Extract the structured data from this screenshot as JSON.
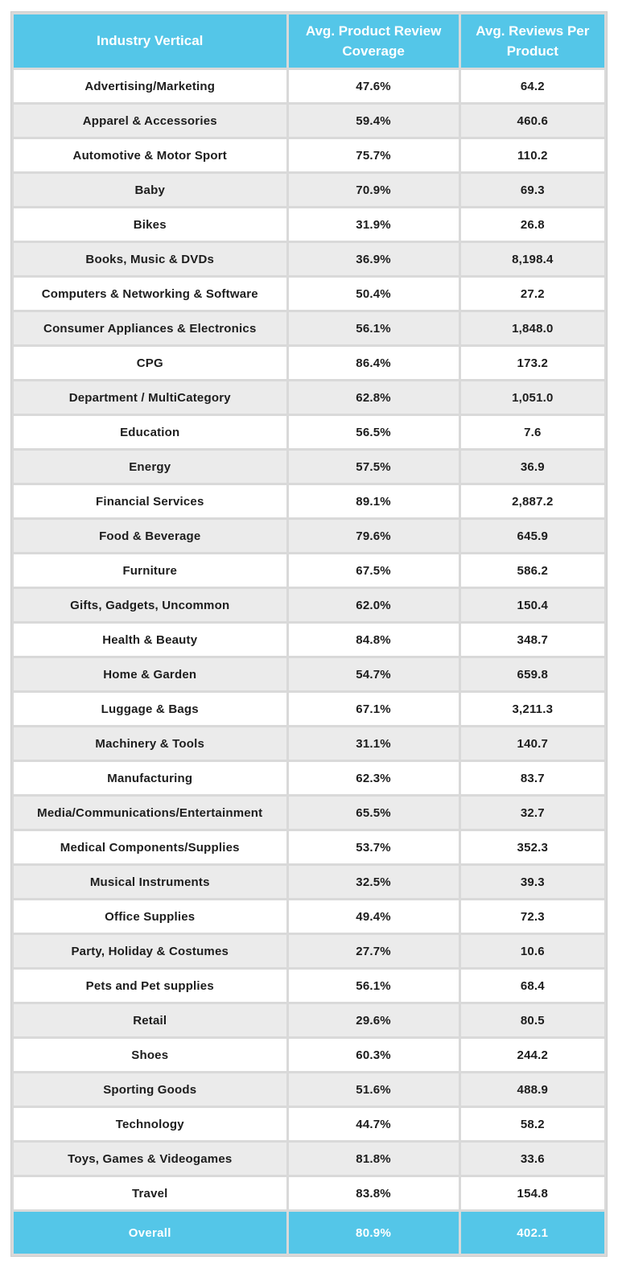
{
  "colors": {
    "header_bg": "#54C6E8",
    "footer_bg": "#54C6E8",
    "row_bg": "#FFFFFF",
    "row_alt_bg": "#EBEBEB",
    "divider": "#D9D9D9",
    "header_text": "#FFFFFF",
    "body_text": "#1D1D1D"
  },
  "chart_data": {
    "type": "table",
    "columns": [
      "Industry Vertical",
      "Avg. Product Review Coverage",
      "Avg. Reviews Per Product"
    ],
    "rows": [
      {
        "industry": "Advertising/Marketing",
        "coverage": "47.6%",
        "reviews": "64.2"
      },
      {
        "industry": "Apparel & Accessories",
        "coverage": "59.4%",
        "reviews": "460.6"
      },
      {
        "industry": "Automotive & Motor Sport",
        "coverage": "75.7%",
        "reviews": "110.2"
      },
      {
        "industry": "Baby",
        "coverage": "70.9%",
        "reviews": "69.3"
      },
      {
        "industry": "Bikes",
        "coverage": "31.9%",
        "reviews": "26.8"
      },
      {
        "industry": "Books, Music & DVDs",
        "coverage": "36.9%",
        "reviews": "8,198.4"
      },
      {
        "industry": "Computers & Networking & Software",
        "coverage": "50.4%",
        "reviews": "27.2"
      },
      {
        "industry": "Consumer Appliances & Electronics",
        "coverage": "56.1%",
        "reviews": "1,848.0"
      },
      {
        "industry": "CPG",
        "coverage": "86.4%",
        "reviews": "173.2"
      },
      {
        "industry": "Department / MultiCategory",
        "coverage": "62.8%",
        "reviews": "1,051.0"
      },
      {
        "industry": "Education",
        "coverage": "56.5%",
        "reviews": "7.6"
      },
      {
        "industry": "Energy",
        "coverage": "57.5%",
        "reviews": "36.9"
      },
      {
        "industry": "Financial Services",
        "coverage": "89.1%",
        "reviews": "2,887.2"
      },
      {
        "industry": "Food & Beverage",
        "coverage": "79.6%",
        "reviews": "645.9"
      },
      {
        "industry": "Furniture",
        "coverage": "67.5%",
        "reviews": "586.2"
      },
      {
        "industry": "Gifts, Gadgets, Uncommon",
        "coverage": "62.0%",
        "reviews": "150.4"
      },
      {
        "industry": "Health & Beauty",
        "coverage": "84.8%",
        "reviews": "348.7"
      },
      {
        "industry": "Home & Garden",
        "coverage": "54.7%",
        "reviews": "659.8"
      },
      {
        "industry": "Luggage & Bags",
        "coverage": "67.1%",
        "reviews": "3,211.3"
      },
      {
        "industry": "Machinery & Tools",
        "coverage": "31.1%",
        "reviews": "140.7"
      },
      {
        "industry": "Manufacturing",
        "coverage": "62.3%",
        "reviews": "83.7"
      },
      {
        "industry": "Media/Communications/Entertainment",
        "coverage": "65.5%",
        "reviews": "32.7"
      },
      {
        "industry": "Medical Components/Supplies",
        "coverage": "53.7%",
        "reviews": "352.3"
      },
      {
        "industry": "Musical Instruments",
        "coverage": "32.5%",
        "reviews": "39.3"
      },
      {
        "industry": "Office Supplies",
        "coverage": "49.4%",
        "reviews": "72.3"
      },
      {
        "industry": "Party, Holiday & Costumes",
        "coverage": "27.7%",
        "reviews": "10.6"
      },
      {
        "industry": "Pets and Pet supplies",
        "coverage": "56.1%",
        "reviews": "68.4"
      },
      {
        "industry": "Retail",
        "coverage": "29.6%",
        "reviews": "80.5"
      },
      {
        "industry": "Shoes",
        "coverage": "60.3%",
        "reviews": "244.2"
      },
      {
        "industry": "Sporting Goods",
        "coverage": "51.6%",
        "reviews": "488.9"
      },
      {
        "industry": "Technology",
        "coverage": "44.7%",
        "reviews": "58.2"
      },
      {
        "industry": "Toys, Games & Videogames",
        "coverage": "81.8%",
        "reviews": "33.6"
      },
      {
        "industry": "Travel",
        "coverage": "83.8%",
        "reviews": "154.8"
      }
    ],
    "footer": {
      "label": "Overall",
      "coverage": "80.9%",
      "reviews": "402.1"
    }
  }
}
